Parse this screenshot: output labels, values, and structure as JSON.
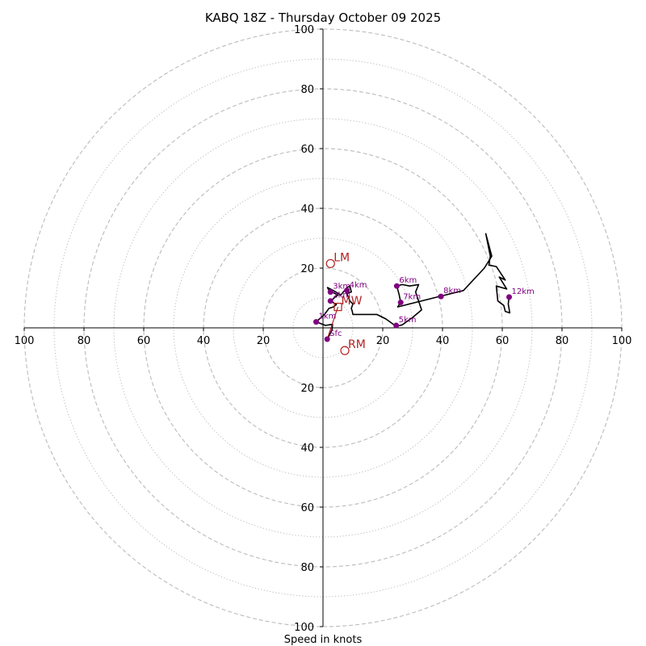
{
  "chart_data": {
    "type": "hodograph",
    "title": "KABQ 18Z - Thursday October 09 2025",
    "xlabel": "Speed in knots",
    "max_speed": 100,
    "ring_major": [
      20,
      40,
      60,
      80,
      100
    ],
    "ring_minor": [
      10,
      30,
      50,
      70,
      90
    ],
    "x_ticks": [
      {
        "value": -100,
        "label": "100"
      },
      {
        "value": -80,
        "label": "80"
      },
      {
        "value": -60,
        "label": "60"
      },
      {
        "value": -40,
        "label": "40"
      },
      {
        "value": -20,
        "label": "20"
      },
      {
        "value": 20,
        "label": "20"
      },
      {
        "value": 40,
        "label": "40"
      },
      {
        "value": 60,
        "label": "60"
      },
      {
        "value": 80,
        "label": "80"
      },
      {
        "value": 100,
        "label": "100"
      }
    ],
    "y_ticks": [
      {
        "value": 100,
        "label": "100"
      },
      {
        "value": 80,
        "label": "80"
      },
      {
        "value": 60,
        "label": "60"
      },
      {
        "value": 40,
        "label": "40"
      },
      {
        "value": 20,
        "label": "20"
      },
      {
        "value": -20,
        "label": "20"
      },
      {
        "value": -40,
        "label": "40"
      },
      {
        "value": -60,
        "label": "60"
      },
      {
        "value": -80,
        "label": "80"
      },
      {
        "value": -100,
        "label": "100"
      }
    ],
    "colors": {
      "trace": "#000000",
      "points": "#800080",
      "motion": "#b22222",
      "grid": "#bbbbbb"
    },
    "trace": [
      [
        1.4,
        -3.8
      ],
      [
        3.0,
        -0.8
      ],
      [
        3.2,
        1.2
      ],
      [
        0.8,
        0.8
      ],
      [
        -1.0,
        1.5
      ],
      [
        -2.3,
        2.0
      ],
      [
        0.5,
        4.5
      ],
      [
        2.0,
        6.5
      ],
      [
        3.5,
        7.0
      ],
      [
        4.5,
        7.8
      ],
      [
        2.5,
        9.0
      ],
      [
        5.0,
        11.0
      ],
      [
        2.0,
        12.5
      ],
      [
        1.5,
        13.5
      ],
      [
        3.5,
        12.5
      ],
      [
        6.0,
        11.0
      ],
      [
        8.0,
        13.5
      ],
      [
        9.0,
        14.0
      ],
      [
        9.5,
        12.0
      ],
      [
        8.0,
        11.5
      ],
      [
        9.0,
        9.0
      ],
      [
        10.0,
        8.0
      ],
      [
        9.5,
        6.5
      ],
      [
        9.8,
        5.5
      ],
      [
        10.0,
        4.5
      ],
      [
        18.0,
        4.5
      ],
      [
        21.0,
        3.0
      ],
      [
        24.5,
        0.5
      ],
      [
        26.5,
        1.0
      ],
      [
        30.0,
        3.5
      ],
      [
        33.0,
        6.0
      ],
      [
        32.0,
        9.0
      ],
      [
        31.0,
        12.0
      ],
      [
        32.0,
        14.5
      ],
      [
        29.0,
        14.0
      ],
      [
        26.5,
        14.5
      ],
      [
        24.7,
        14.0
      ],
      [
        25.5,
        11.0
      ],
      [
        26.0,
        8.5
      ],
      [
        25.0,
        7.0
      ],
      [
        39.0,
        10.5
      ],
      [
        47.0,
        12.5
      ],
      [
        54.0,
        20.0
      ],
      [
        56.5,
        24.0
      ],
      [
        54.5,
        31.5
      ],
      [
        56.0,
        24.0
      ],
      [
        55.5,
        21.0
      ],
      [
        58.0,
        20.5
      ],
      [
        61.0,
        16.0
      ],
      [
        59.0,
        17.0
      ],
      [
        61.5,
        13.0
      ],
      [
        58.0,
        14.0
      ],
      [
        58.5,
        9.0
      ],
      [
        60.5,
        7.5
      ],
      [
        61.0,
        5.5
      ],
      [
        62.5,
        5.0
      ],
      [
        62.0,
        8.0
      ],
      [
        62.3,
        10.3
      ]
    ],
    "height_points": [
      {
        "label": "Sfc",
        "u": 1.4,
        "v": -3.8
      },
      {
        "label": "1km",
        "u": -2.3,
        "v": 2.0
      },
      {
        "label": "2km",
        "u": 2.5,
        "v": 9.0
      },
      {
        "label": "3km",
        "u": 2.5,
        "v": 12.0
      },
      {
        "label": "4km",
        "u": 8.0,
        "v": 12.5
      },
      {
        "label": "5km",
        "u": 24.5,
        "v": 0.8
      },
      {
        "label": "6km",
        "u": 24.7,
        "v": 14.0
      },
      {
        "label": "7km",
        "u": 26.0,
        "v": 8.5
      },
      {
        "label": "8km",
        "u": 39.5,
        "v": 10.5
      },
      {
        "label": "12km",
        "u": 62.3,
        "v": 10.3
      }
    ],
    "storm_motions": [
      {
        "label": "LM",
        "u": 2.5,
        "v": 21.5,
        "marker": "circle"
      },
      {
        "label": "MW",
        "u": 5.0,
        "v": 7.0,
        "marker": "square"
      },
      {
        "label": "RM",
        "u": 7.3,
        "v": -7.6,
        "marker": "circle"
      }
    ]
  }
}
